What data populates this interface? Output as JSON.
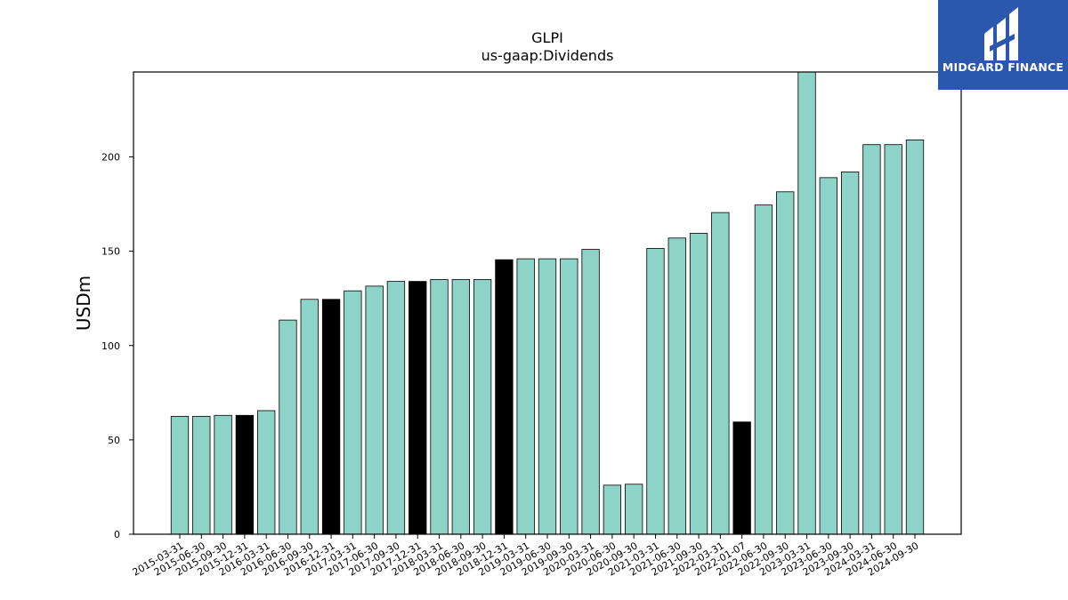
{
  "brand": {
    "name": "MIDGARD FINANCE",
    "logo_icon": "midgard-mark-icon",
    "background": "#2b58ad"
  },
  "colors": {
    "bar_fill": "#8dd3c7",
    "bar_highlight": "#000000",
    "bar_edge": "#000000"
  },
  "chart_data": {
    "type": "bar",
    "title": "GLPI",
    "subtitle": "us-gaap:Dividends",
    "xlabel": "",
    "ylabel": "USDm",
    "ylim": [
      0,
      245
    ],
    "yticks": [
      0,
      50,
      100,
      150,
      200
    ],
    "grid": false,
    "legend": "none",
    "categories": [
      "2015-03-31",
      "2015-06-30",
      "2015-09-30",
      "2015-12-31",
      "2016-03-31",
      "2016-06-30",
      "2016-09-30",
      "2016-12-31",
      "2017-03-31",
      "2017-06-30",
      "2017-09-30",
      "2017-12-31",
      "2018-03-31",
      "2018-06-30",
      "2018-09-30",
      "2018-12-31",
      "2019-03-31",
      "2019-06-30",
      "2019-09-30",
      "2020-03-31",
      "2020-06-30",
      "2020-09-30",
      "2021-03-31",
      "2021-06-30",
      "2021-09-30",
      "2022-03-31",
      "2022-01-07",
      "2022-06-30",
      "2022-09-30",
      "2023-03-31",
      "2023-06-30",
      "2023-09-30",
      "2024-03-31",
      "2024-06-30",
      "2024-09-30"
    ],
    "values": [
      62.5,
      62.5,
      63.0,
      63.0,
      65.5,
      113.5,
      124.5,
      124.5,
      129.0,
      131.5,
      134.0,
      134.0,
      135.0,
      135.0,
      135.0,
      145.5,
      146.0,
      146.0,
      146.0,
      151.0,
      26.0,
      26.5,
      151.5,
      157.0,
      159.5,
      170.5,
      59.5,
      174.5,
      181.5,
      245.0,
      189.0,
      192.0,
      206.5,
      206.5,
      209.0
    ],
    "highlighted": [
      false,
      false,
      false,
      true,
      false,
      false,
      false,
      true,
      false,
      false,
      false,
      true,
      false,
      false,
      false,
      true,
      false,
      false,
      false,
      false,
      false,
      false,
      false,
      false,
      false,
      false,
      true,
      false,
      false,
      false,
      false,
      false,
      false,
      false,
      false
    ]
  }
}
